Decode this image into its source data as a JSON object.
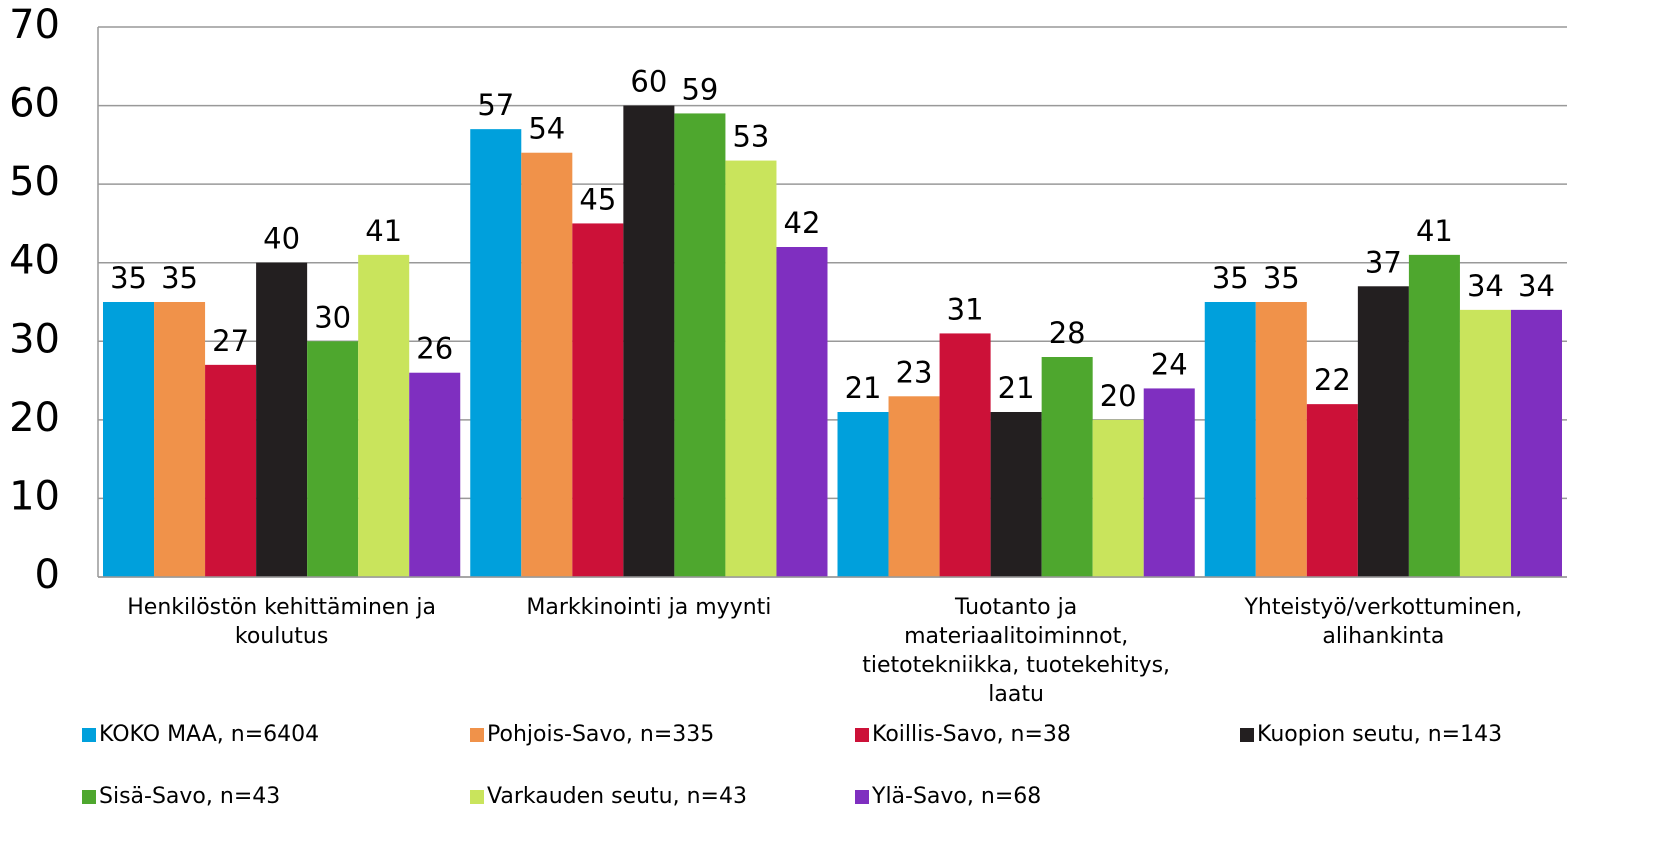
{
  "chart_data": {
    "type": "bar",
    "categories": [
      "Henkilöstön kehittäminen ja koulutus",
      "Markkinointi ja myynti",
      "Tuotanto ja materiaalitoiminnot, tietotekniikka, tuotekehitys, laatu",
      "Yhteistyö/verkottuminen, alihankinta"
    ],
    "series": [
      {
        "name": "KOKO MAA, n=6404",
        "color": "#00a0dc",
        "values": [
          35,
          57,
          21,
          35
        ]
      },
      {
        "name": "Pohjois-Savo, n=335",
        "color": "#f0924a",
        "values": [
          35,
          54,
          23,
          35
        ]
      },
      {
        "name": "Koillis-Savo, n=38",
        "color": "#cc1138",
        "values": [
          27,
          45,
          31,
          22
        ]
      },
      {
        "name": "Kuopion seutu, n=143",
        "color": "#231f20",
        "values": [
          40,
          60,
          21,
          37
        ]
      },
      {
        "name": "Sisä-Savo, n=43",
        "color": "#4ea72e",
        "values": [
          30,
          59,
          28,
          41
        ]
      },
      {
        "name": "Varkauden seutu, n=43",
        "color": "#c9e45c",
        "values": [
          41,
          53,
          20,
          34
        ]
      },
      {
        "name": "Ylä-Savo, n=68",
        "color": "#7f2fc0",
        "values": [
          26,
          42,
          24,
          34
        ]
      }
    ],
    "ylim": [
      0,
      70
    ],
    "yticks": [
      0,
      10,
      20,
      30,
      40,
      50,
      60,
      70
    ],
    "grid": true,
    "legend": "bottom"
  }
}
